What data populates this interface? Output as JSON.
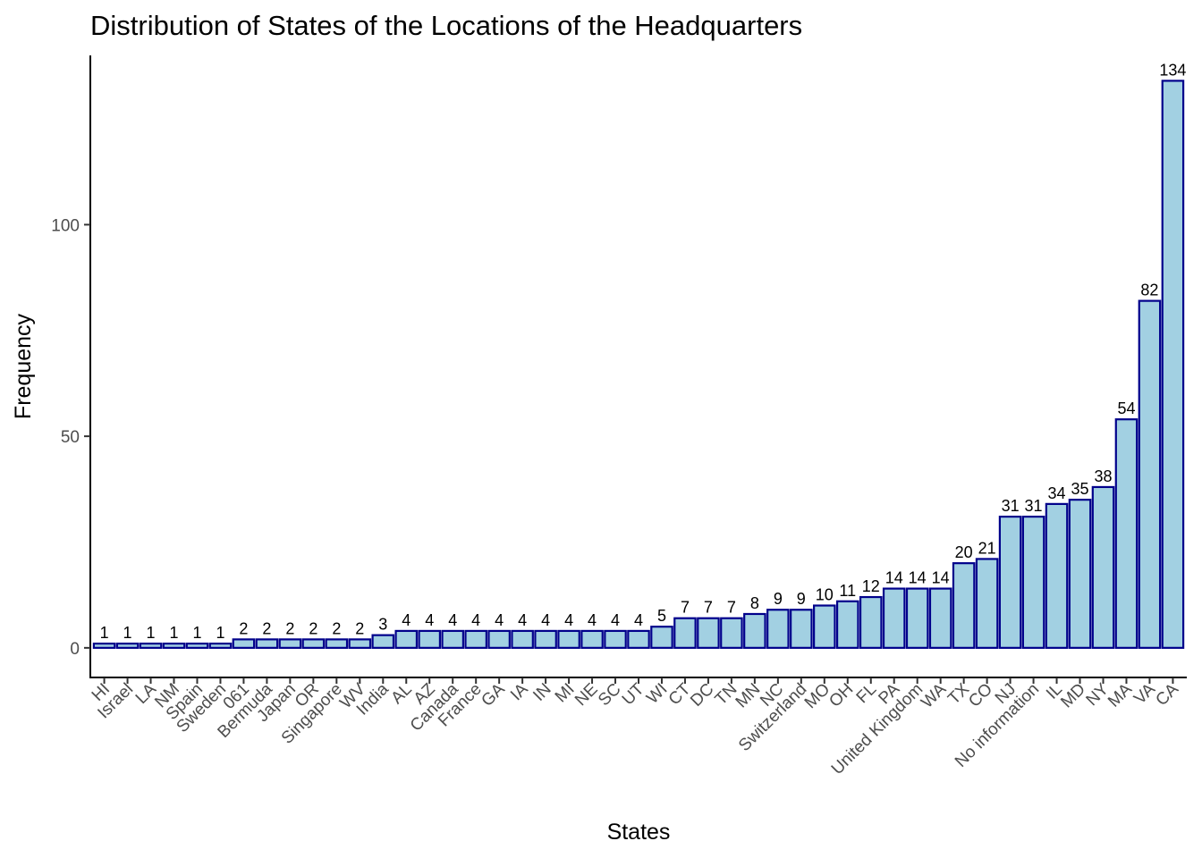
{
  "chart_data": {
    "type": "bar",
    "title": "Distribution of States of the Locations of the Headquarters",
    "xlabel": "States",
    "ylabel": "Frequency",
    "ylim": [
      -7,
      140
    ],
    "yticks": [
      0,
      50,
      100
    ],
    "bar_fill": "#a2d0e2",
    "bar_stroke": "#00008b",
    "grid": false,
    "legend": "none",
    "categories": [
      "HI",
      "Israel",
      "LA",
      "NM",
      "Spain",
      "Sweden",
      "061",
      "Bermuda",
      "Japan",
      "OR",
      "Singapore",
      "WV",
      "India",
      "AL",
      "AZ",
      "Canada",
      "France",
      "GA",
      "IA",
      "IN",
      "MI",
      "NE",
      "SC",
      "UT",
      "WI",
      "CT",
      "DC",
      "TN",
      "MN",
      "NC",
      "Switzerland",
      "MO",
      "OH",
      "FL",
      "PA",
      "United Kingdom",
      "WA",
      "TX",
      "CO",
      "NJ",
      "No information",
      "IL",
      "MD",
      "NY",
      "MA",
      "VA",
      "CA"
    ],
    "values": [
      1,
      1,
      1,
      1,
      1,
      1,
      2,
      2,
      2,
      2,
      2,
      2,
      3,
      4,
      4,
      4,
      4,
      4,
      4,
      4,
      4,
      4,
      4,
      4,
      5,
      7,
      7,
      7,
      8,
      9,
      9,
      10,
      11,
      12,
      14,
      14,
      14,
      20,
      21,
      31,
      31,
      34,
      35,
      38,
      54,
      82,
      134
    ]
  }
}
